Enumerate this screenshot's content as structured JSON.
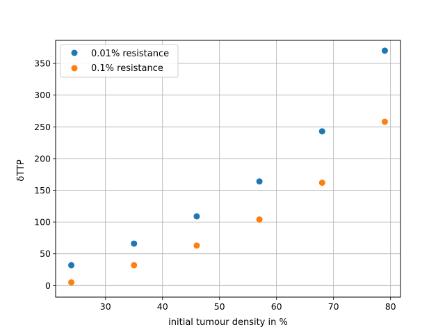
{
  "chart_data": {
    "type": "scatter",
    "title": "",
    "xlabel": "initial tumour density in %",
    "ylabel": "δTTP",
    "xlim": [
      21.25,
      81.75
    ],
    "ylim": [
      -18.3,
      386.3
    ],
    "xticks": [
      "30",
      "40",
      "50",
      "60",
      "70",
      "80"
    ],
    "yticks": [
      "0",
      "50",
      "100",
      "150",
      "200",
      "250",
      "300",
      "350"
    ],
    "grid": true,
    "legend_position": "top-left",
    "series": [
      {
        "name": "0.01% resistance",
        "color": "#1f77b4",
        "x": [
          24,
          35,
          46,
          57,
          68,
          79
        ],
        "y": [
          32,
          66,
          109,
          164,
          243,
          370
        ]
      },
      {
        "name": "0.1% resistance",
        "color": "#ff7f0e",
        "x": [
          24,
          35,
          46,
          57,
          68,
          79
        ],
        "y": [
          5,
          32,
          63,
          104,
          162,
          258
        ]
      }
    ]
  }
}
